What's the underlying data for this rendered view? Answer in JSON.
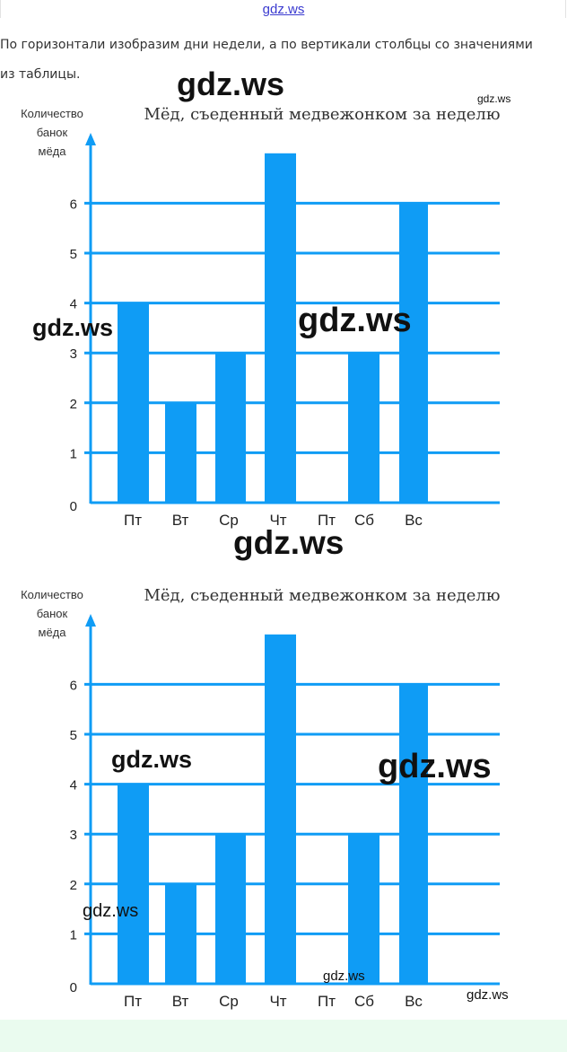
{
  "header": {
    "site_link": "gdz.ws"
  },
  "intro_text": "По горизонтали изобразим дни недели, а по вертикали столбцы со значениями из таблицы.",
  "watermarks": [
    {
      "text": "gdz.ws",
      "size": "big"
    },
    {
      "text": "gdz.ws",
      "size": "small"
    },
    {
      "text": "gdz.ws",
      "size": "medium"
    },
    {
      "text": "gdz.ws",
      "size": "big"
    },
    {
      "text": "gdz.ws",
      "size": "big"
    },
    {
      "text": "gdz.ws",
      "size": "medium"
    },
    {
      "text": "gdz.ws",
      "size": "big"
    },
    {
      "text": "gdz.ws",
      "size": "medium"
    },
    {
      "text": "gdz.ws",
      "size": "small"
    },
    {
      "text": "gdz.ws",
      "size": "small"
    }
  ],
  "colors": {
    "bar": "#0f9cf5",
    "grid": "#0f9cf5",
    "background_band": "#eafbef",
    "link": "#3b3bd0"
  },
  "chart_data": [
    {
      "type": "bar",
      "title": "Мёд, съеденный медвежонком за неделю",
      "ylabel": [
        "Количество",
        "банок",
        "мёда"
      ],
      "categories": [
        "Пт",
        "Вт",
        "Ср",
        "Чт",
        "Пт",
        "Сб",
        "Вс"
      ],
      "values": [
        4,
        2,
        3,
        7,
        0,
        3,
        6
      ],
      "yticks": [
        0,
        1,
        2,
        3,
        4,
        5,
        6
      ],
      "ylim": [
        0,
        7.6
      ],
      "grid": true
    },
    {
      "type": "bar",
      "title": "Мёд, съеденный медвежонком за неделю",
      "ylabel": [
        "Количество",
        "банок",
        "мёда"
      ],
      "categories": [
        "Пт",
        "Вт",
        "Ср",
        "Чт",
        "Пт",
        "Сб",
        "Вс"
      ],
      "values": [
        4,
        2,
        3,
        7,
        0,
        3,
        6
      ],
      "yticks": [
        0,
        1,
        2,
        3,
        4,
        5,
        6
      ],
      "ylim": [
        0,
        7.6
      ],
      "grid": true
    }
  ]
}
